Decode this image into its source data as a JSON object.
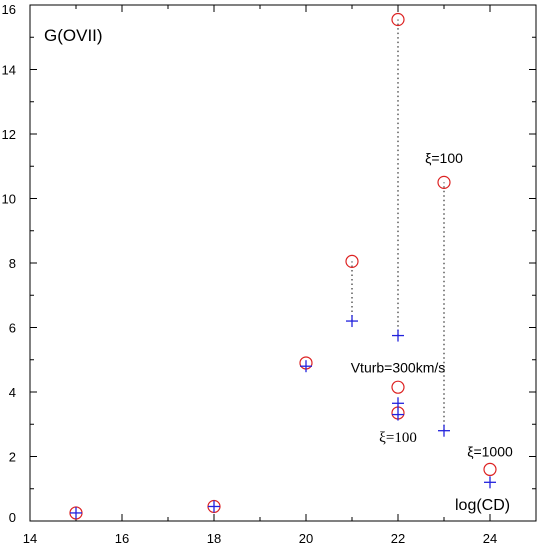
{
  "chart_data": {
    "type": "scatter",
    "title": "G(OVII)",
    "xlabel": "log(CD)",
    "ylabel": "",
    "xlim": [
      14,
      25
    ],
    "ylim": [
      0,
      16
    ],
    "xticks": [
      14,
      16,
      18,
      20,
      22,
      24
    ],
    "yticks": [
      0,
      2,
      4,
      6,
      8,
      10,
      12,
      14,
      16
    ],
    "grid": false,
    "series": [
      {
        "marker": "circle",
        "color": "#dd2222",
        "points": [
          {
            "x": 15,
            "y": 0.25
          },
          {
            "x": 18,
            "y": 0.45
          },
          {
            "x": 20,
            "y": 4.9
          },
          {
            "x": 21,
            "y": 8.05
          },
          {
            "x": 22,
            "y": 15.55
          },
          {
            "x": 22,
            "y": 4.15
          },
          {
            "x": 22,
            "y": 3.35
          },
          {
            "x": 23,
            "y": 10.5
          },
          {
            "x": 24,
            "y": 1.6
          }
        ]
      },
      {
        "marker": "plus",
        "color": "#2222dd",
        "points": [
          {
            "x": 15,
            "y": 0.25
          },
          {
            "x": 18,
            "y": 0.45
          },
          {
            "x": 20,
            "y": 4.8
          },
          {
            "x": 21,
            "y": 6.2
          },
          {
            "x": 22,
            "y": 5.75
          },
          {
            "x": 22,
            "y": 3.65
          },
          {
            "x": 22,
            "y": 3.3
          },
          {
            "x": 23,
            "y": 2.8
          },
          {
            "x": 24,
            "y": 1.2
          }
        ]
      }
    ],
    "connectors": [
      {
        "x": 21,
        "y1": 6.2,
        "y2": 8.05
      },
      {
        "x": 22,
        "y1": 5.75,
        "y2": 15.55
      },
      {
        "x": 23,
        "y1": 2.8,
        "y2": 10.5
      }
    ],
    "annotations": [
      {
        "text": "ξ=100",
        "x": 23,
        "y": 11.1,
        "style": "sans"
      },
      {
        "text": "Vturb=300km/s",
        "x": 22,
        "y": 4.6,
        "style": "sans"
      },
      {
        "text": "ξ=100",
        "x": 22,
        "y": 2.45,
        "style": "serif"
      },
      {
        "text": "ξ=1000",
        "x": 24,
        "y": 2.0,
        "style": "sans"
      }
    ]
  }
}
